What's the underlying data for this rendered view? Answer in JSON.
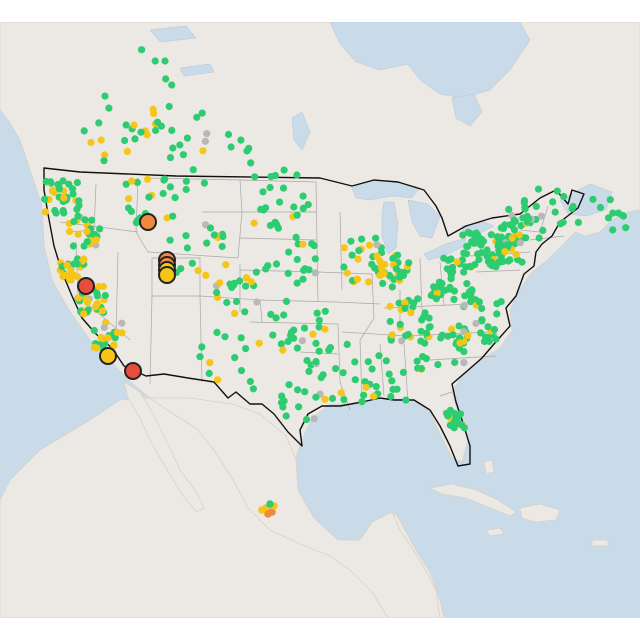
{
  "map": {
    "basemap": "light-gray-canvas",
    "colors": {
      "water": "#c9dbe9",
      "land": "#ece8e3",
      "us_border": "#111111",
      "state_lines": "#a8a8a8",
      "status_green": "#2ecc71",
      "status_yellow": "#f5c518",
      "status_orange": "#f0883e",
      "status_red": "#e74c3c",
      "status_gray": "#b8b8b8"
    },
    "large_markers": [
      {
        "name": "marker-idaho",
        "status": "orange"
      },
      {
        "name": "marker-utah-1",
        "status": "orange"
      },
      {
        "name": "marker-utah-2",
        "status": "orange"
      },
      {
        "name": "marker-utah-3",
        "status": "yellow"
      },
      {
        "name": "marker-utah-4",
        "status": "yellow"
      },
      {
        "name": "marker-norcal",
        "status": "red"
      },
      {
        "name": "marker-socal",
        "status": "yellow"
      },
      {
        "name": "marker-arizona",
        "status": "red"
      }
    ]
  }
}
